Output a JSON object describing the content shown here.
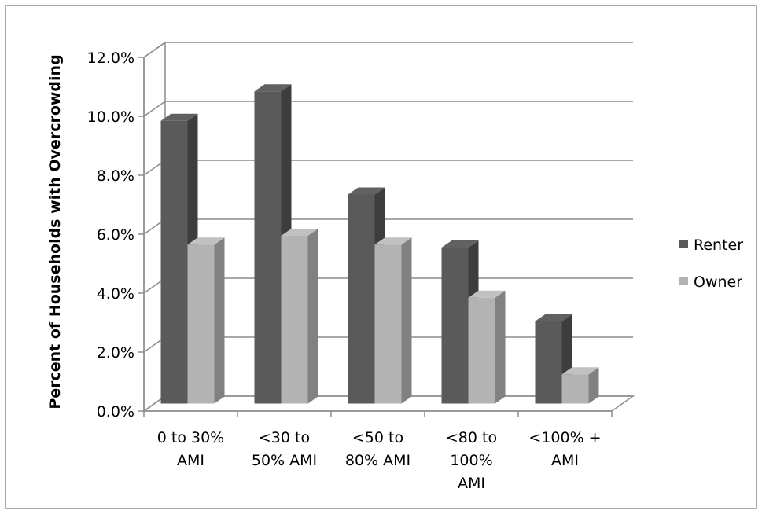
{
  "chart_data": {
    "type": "bar",
    "style": "3d-clustered-column",
    "categories": [
      [
        "0 to 30%",
        "AMI"
      ],
      [
        "<30 to",
        "50% AMI"
      ],
      [
        "<50 to",
        "80% AMI"
      ],
      [
        "<80 to",
        "100%",
        "AMI"
      ],
      [
        "<100% +",
        "AMI"
      ]
    ],
    "series": [
      {
        "name": "Renter",
        "color": "#5a5a5a",
        "values": [
          10.1,
          11.1,
          7.6,
          5.8,
          3.3
        ]
      },
      {
        "name": "Owner",
        "color": "#b3b3b3",
        "values": [
          5.9,
          6.2,
          5.9,
          4.1,
          1.5
        ]
      }
    ],
    "title": "",
    "xlabel": "",
    "ylabel": "Percent of Households with Overcrowding",
    "ylim": [
      0,
      12
    ],
    "yticks": [
      "0.0%",
      "2.0%",
      "4.0%",
      "6.0%",
      "8.0%",
      "10.0%",
      "12.0%"
    ],
    "grid": true,
    "legend_position": "right"
  }
}
